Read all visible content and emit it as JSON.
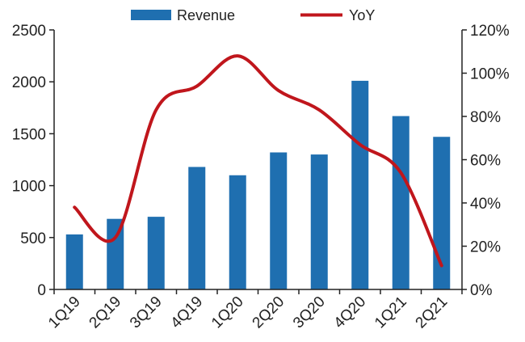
{
  "chart_data": {
    "type": "bar",
    "categories": [
      "1Q19",
      "2Q19",
      "3Q19",
      "4Q19",
      "1Q20",
      "2Q20",
      "3Q20",
      "4Q20",
      "1Q21",
      "2Q21"
    ],
    "series": [
      {
        "name": "Revenue",
        "type": "bar",
        "axis": "left",
        "color": "#1f6fb0",
        "values": [
          530,
          680,
          700,
          1180,
          1100,
          1320,
          1300,
          2010,
          1670,
          1470
        ]
      },
      {
        "name": "YoY",
        "type": "line",
        "axis": "right",
        "color": "#c0161c",
        "smooth": true,
        "values": [
          38,
          24,
          83,
          94,
          108,
          92,
          83,
          67,
          54,
          11
        ]
      }
    ],
    "left_axis": {
      "range": [
        0,
        2500
      ],
      "ticks": [
        0,
        500,
        1000,
        1500,
        2000,
        2500
      ],
      "tick_labels": [
        "0",
        "500",
        "1000",
        "1500",
        "2000",
        "2500"
      ]
    },
    "right_axis": {
      "range": [
        0,
        120
      ],
      "ticks": [
        0,
        20,
        40,
        60,
        80,
        100,
        120
      ],
      "tick_labels": [
        "0%",
        "20%",
        "40%",
        "60%",
        "80%",
        "100%",
        "120%"
      ]
    },
    "title": "",
    "xlabel": "",
    "ylabel": "",
    "grid": false,
    "legend": {
      "position": "top-center"
    }
  }
}
